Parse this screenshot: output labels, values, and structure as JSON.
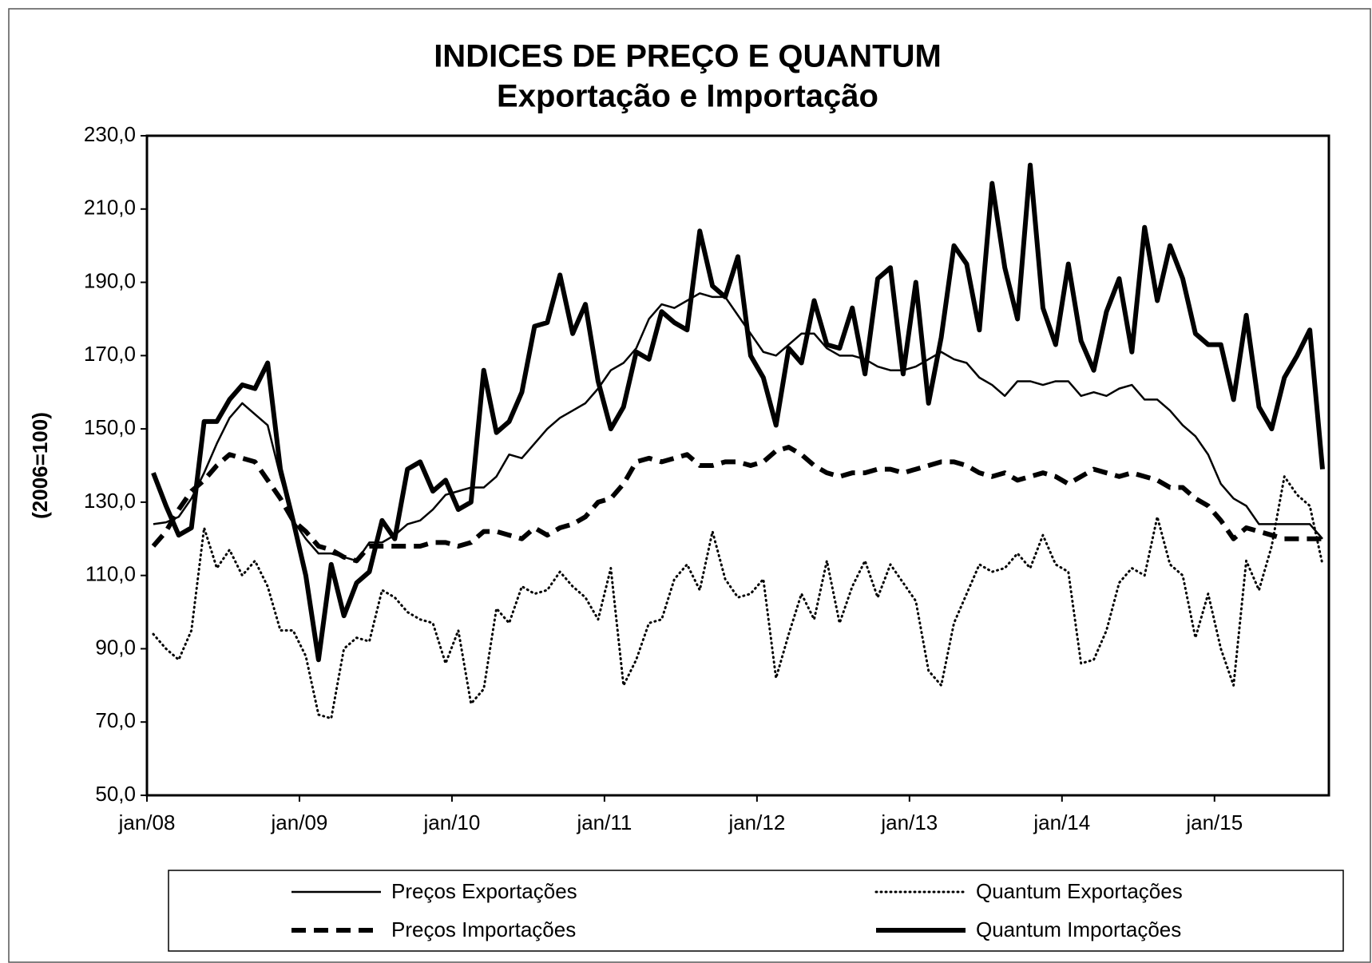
{
  "chart_data": {
    "type": "line",
    "title": "INDICES DE PREÇO E QUANTUM",
    "subtitle": "Exportação e Importação",
    "y_label": "(2006=100)",
    "categories": [
      "jan/08",
      null,
      null,
      null,
      null,
      null,
      null,
      null,
      null,
      null,
      null,
      null,
      "jan/09",
      null,
      null,
      null,
      null,
      null,
      null,
      null,
      null,
      null,
      null,
      null,
      "jan/10",
      null,
      null,
      null,
      null,
      null,
      null,
      null,
      null,
      null,
      null,
      null,
      "jan/11",
      null,
      null,
      null,
      null,
      null,
      null,
      null,
      null,
      null,
      null,
      null,
      "jan/12",
      null,
      null,
      null,
      null,
      null,
      null,
      null,
      null,
      null,
      null,
      null,
      "jan/13",
      null,
      null,
      null,
      null,
      null,
      null,
      null,
      null,
      null,
      null,
      null,
      "jan/14",
      null,
      null,
      null,
      null,
      null,
      null,
      null,
      null,
      null,
      null,
      null,
      "jan/15",
      null,
      null,
      null,
      null,
      null,
      null,
      null,
      null
    ],
    "series": [
      {
        "name": "Preços Exportações",
        "color": "#000000",
        "linestyle": "thin",
        "values": [
          124,
          124.5,
          126,
          131,
          138,
          146,
          153,
          157,
          154,
          151,
          137,
          125,
          120,
          116,
          116,
          115,
          114,
          119,
          119,
          121,
          124,
          125,
          128,
          132,
          133,
          134,
          134,
          137,
          143,
          142,
          146,
          150,
          153,
          155,
          157,
          161,
          166,
          168,
          172,
          180,
          184,
          183,
          185,
          187,
          186,
          186,
          181,
          176,
          171,
          170,
          173,
          176,
          176,
          172,
          170,
          170,
          169,
          167,
          166,
          166,
          167,
          169,
          171,
          169,
          168,
          164,
          162,
          159,
          163,
          163,
          162,
          163,
          163,
          159,
          160,
          159,
          161,
          162,
          158,
          158,
          155,
          151,
          148,
          143,
          135,
          131,
          129,
          124,
          124,
          124,
          124,
          124,
          120
        ]
      },
      {
        "name": "Quantum Exportações",
        "color": "#000000",
        "linestyle": "dotted",
        "values": [
          94,
          90,
          87,
          95,
          123,
          112,
          117,
          110,
          114,
          107,
          95,
          95,
          88,
          72,
          71,
          90,
          93,
          92,
          106,
          104,
          100,
          98,
          97,
          86,
          95,
          75,
          79,
          101,
          97,
          107,
          105,
          106,
          111,
          107,
          104,
          98,
          112,
          80,
          87,
          97,
          98,
          109,
          113,
          106,
          122,
          109,
          104,
          105,
          109,
          82,
          94,
          105,
          98,
          114,
          97,
          107,
          114,
          104,
          113,
          108,
          103,
          84,
          80,
          97,
          105,
          113,
          111,
          112,
          116,
          112,
          121,
          113,
          111,
          86,
          87,
          95,
          108,
          112,
          110,
          126,
          113,
          110,
          93,
          105,
          90,
          80,
          114,
          106,
          118,
          137,
          132,
          129,
          113
        ]
      },
      {
        "name": "Preços Importações",
        "color": "#000000",
        "linestyle": "dashed",
        "values": [
          118,
          122,
          128,
          133,
          136,
          140,
          143,
          142,
          141,
          136,
          131,
          125,
          122,
          118,
          117,
          115,
          114,
          118,
          118,
          118,
          118,
          118,
          119,
          119,
          118,
          119,
          122,
          122,
          121,
          120,
          123,
          121,
          123,
          124,
          126,
          130,
          131,
          135,
          141,
          142,
          141,
          142,
          143,
          140,
          140,
          141,
          141,
          140,
          141,
          144,
          145,
          143,
          140,
          138,
          137,
          138,
          138,
          139,
          139,
          138,
          139,
          140,
          141,
          141,
          140,
          138,
          137,
          138,
          136,
          137,
          138,
          137,
          135,
          137,
          139,
          138,
          137,
          138,
          137,
          136,
          134,
          134,
          131,
          129,
          125,
          120,
          123,
          122,
          121,
          120,
          120,
          120,
          120
        ]
      },
      {
        "name": "Quantum Importações",
        "color": "#000000",
        "linestyle": "thick",
        "values": [
          138,
          129,
          121,
          123,
          152,
          152,
          158,
          162,
          161,
          168,
          139,
          125,
          110,
          87,
          113,
          99,
          108,
          111,
          125,
          120,
          139,
          141,
          133,
          136,
          128,
          130,
          166,
          149,
          152,
          160,
          178,
          179,
          192,
          176,
          184,
          163,
          150,
          156,
          171,
          169,
          182,
          179,
          177,
          204,
          189,
          186,
          197,
          170,
          164,
          151,
          172,
          168,
          185,
          173,
          172,
          183,
          165,
          191,
          194,
          165,
          190,
          157,
          175,
          200,
          195,
          177,
          217,
          194,
          180,
          222,
          183,
          173,
          195,
          174,
          166,
          182,
          191,
          171,
          205,
          185,
          200,
          191,
          176,
          173,
          173,
          158,
          181,
          156,
          150,
          164,
          170,
          177,
          139
        ]
      }
    ],
    "ylim": [
      50,
      230
    ],
    "yticks": [
      {
        "value": 50,
        "label": "50,0"
      },
      {
        "value": 70,
        "label": "70,0"
      },
      {
        "value": 90,
        "label": "90,0"
      },
      {
        "value": 110,
        "label": "110,0"
      },
      {
        "value": 130,
        "label": "130,0"
      },
      {
        "value": 150,
        "label": "150,0"
      },
      {
        "value": 170,
        "label": "170,0"
      },
      {
        "value": 190,
        "label": "190,0"
      },
      {
        "value": 210,
        "label": "210,0"
      },
      {
        "value": 230,
        "label": "230,0"
      }
    ],
    "grid": false,
    "legend": "bottom"
  }
}
